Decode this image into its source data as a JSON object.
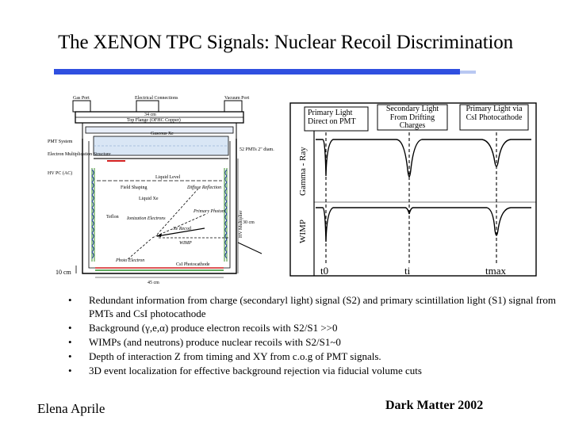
{
  "slide": {
    "title": "The XENON TPC Signals: Nuclear Recoil Discrimination",
    "accent_color": "#2f4fe0"
  },
  "detector": {
    "labels": {
      "gas_port": "Gas Port",
      "electrical_connections": "Electrical Connections",
      "vacuum_port": "Vacuum Port",
      "flange_size": "34 cm",
      "top_flange": "Top Flange (OFHC Copper)",
      "pmt_system": "PMT System",
      "gaseous_xe": "Gaseous Xe",
      "pmt_count": "52 PMTs 2\" diam.",
      "multiplication": "Electron Multiplication Structure",
      "hv_pc": "HV PC (AC)",
      "liquid_level": "Liquid Level",
      "diffuse_reflection": "Diffuse Reflection",
      "field_shaping": "Field Shaping",
      "liquid_xe": "Liquid Xe",
      "primary_photon": "Primary Photon",
      "teflon": "Teflon",
      "ionization_electrons": "Ionization Electrons",
      "xe_recoil": "Xe Recoil",
      "wimp": "WIMP",
      "hv_multiplier": "HV Multiplier",
      "height": "30 cm",
      "photo_electron": "Photo Electron",
      "csi_photocathode": "CsI Photocathode",
      "scale": "10 cm",
      "width": "45 cm"
    }
  },
  "waveforms": {
    "headers": {
      "primary": "Primary Light Direct on PMT",
      "secondary": "Secondary Light From Drifting Charges",
      "csi": "Primary Light via CsI Photocathode"
    },
    "rows": {
      "gamma": "Gamma - Ray",
      "wimp": "WIMP"
    },
    "times": {
      "t0": "t0",
      "ti": "ti",
      "tmax": "tmax"
    }
  },
  "bullets": [
    {
      "marker": "•",
      "text": "Redundant information from charge (secondaryl light) signal (S2) and primary scintillation light (S1) signal from PMTs and CsI photocathode"
    },
    {
      "marker": "•",
      "text": "Background (γ,e,α) produce electron recoils with S2/S1 >>0"
    },
    {
      "marker": "•",
      "text": "WIMPs (and neutrons) produce nuclear recoils with S2/S1~0"
    },
    {
      "marker": "•",
      "text": "Depth of interaction Z from timing  and XY from c.o.g of  PMT signals."
    },
    {
      "marker": "•",
      "text": "3D event localization for effective background rejection via fiducial volume cuts"
    }
  ],
  "footer": {
    "author": "Elena Aprile",
    "conference": "Dark Matter 2002"
  }
}
